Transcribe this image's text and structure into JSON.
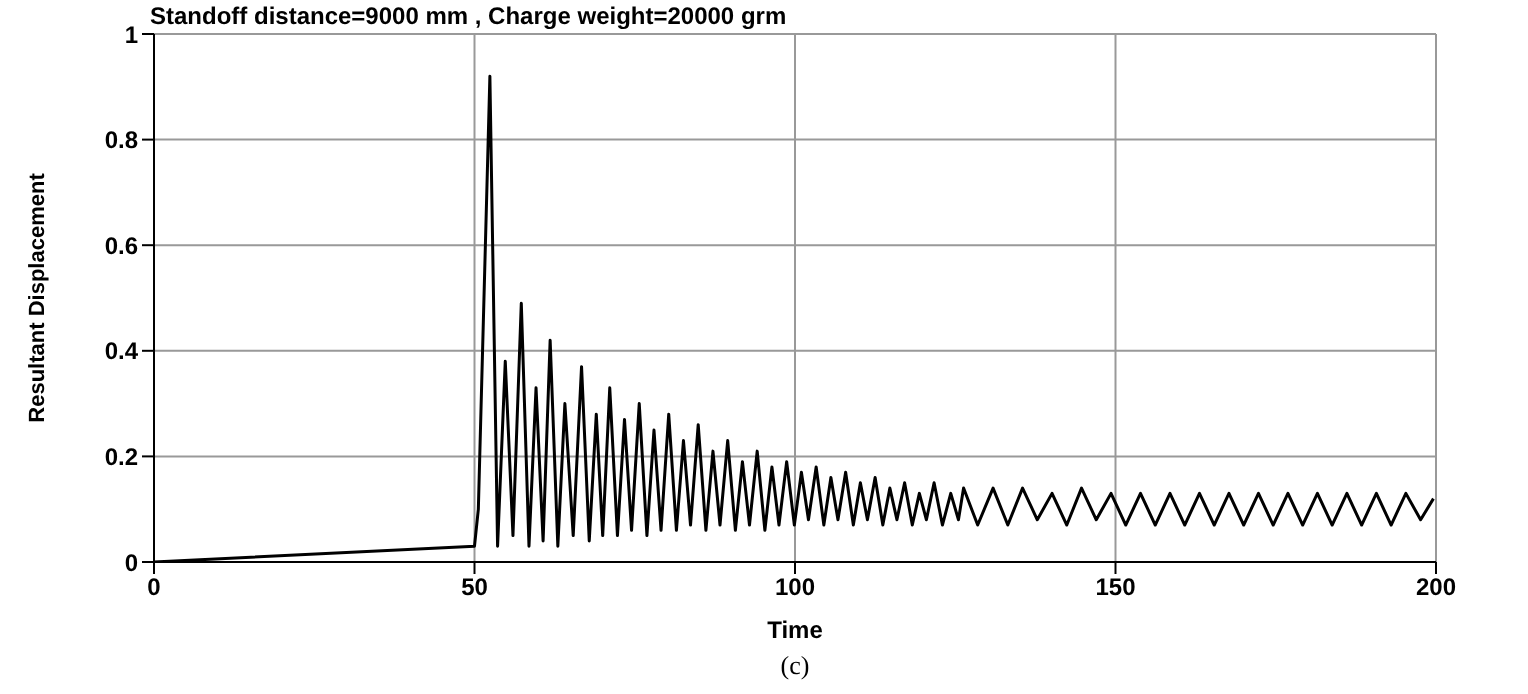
{
  "chart_data": {
    "type": "line",
    "title": "Standoff distance=9000 mm , Charge weight=20000 grm",
    "xlabel": "Time",
    "ylabel": "Resultant Displacement",
    "annotations": [
      "(c)"
    ],
    "xlim": [
      0,
      200
    ],
    "xticks": [
      0,
      50,
      100,
      150,
      200
    ],
    "ylim": [
      0,
      1
    ],
    "yticks": [
      0,
      0.2,
      0.4,
      0.6,
      0.8,
      1
    ],
    "grid": true,
    "line_style": "solid",
    "marker": "none",
    "series": [
      {
        "color": "#000000",
        "x": [
          0,
          50,
          50.6,
          52.4,
          53.6,
          54.8,
          56,
          57.3,
          58.5,
          59.6,
          60.7,
          61.8,
          63,
          64.1,
          65.4,
          66.7,
          67.9,
          69,
          70,
          71.1,
          72.3,
          73.4,
          74.5,
          75.7,
          76.9,
          78,
          79.1,
          80.3,
          81.5,
          82.6,
          83.7,
          84.9,
          86.1,
          87.2,
          88.3,
          89.5,
          90.7,
          91.8,
          92.9,
          94.1,
          95.3,
          96.4,
          97.5,
          98.7,
          99.9,
          101,
          102.1,
          103.3,
          104.5,
          105.6,
          106.7,
          107.9,
          109.1,
          110.2,
          111.3,
          112.5,
          113.7,
          114.8,
          115.9,
          117.1,
          118.3,
          119.4,
          120.5,
          121.7,
          123,
          124.3,
          125.5,
          126.3,
          128.5,
          130.9,
          133.2,
          135.5,
          137.8,
          140.1,
          142.4,
          144.7,
          147,
          149.3,
          151.6,
          153.9,
          156.2,
          158.5,
          160.8,
          163.1,
          165.4,
          167.7,
          170,
          172.3,
          174.6,
          176.9,
          179.2,
          181.5,
          183.8,
          186.1,
          188.4,
          190.7,
          193,
          195.3,
          197.6,
          199.6
        ],
        "values": [
          0,
          0.03,
          0.1,
          0.92,
          0.03,
          0.38,
          0.05,
          0.49,
          0.03,
          0.33,
          0.04,
          0.42,
          0.03,
          0.3,
          0.05,
          0.37,
          0.04,
          0.28,
          0.05,
          0.33,
          0.05,
          0.27,
          0.06,
          0.3,
          0.05,
          0.25,
          0.06,
          0.28,
          0.06,
          0.23,
          0.07,
          0.26,
          0.06,
          0.21,
          0.07,
          0.23,
          0.06,
          0.19,
          0.07,
          0.21,
          0.06,
          0.18,
          0.07,
          0.19,
          0.07,
          0.17,
          0.08,
          0.18,
          0.07,
          0.16,
          0.08,
          0.17,
          0.07,
          0.15,
          0.08,
          0.16,
          0.07,
          0.14,
          0.08,
          0.15,
          0.07,
          0.13,
          0.08,
          0.15,
          0.07,
          0.13,
          0.08,
          0.14,
          0.07,
          0.14,
          0.07,
          0.14,
          0.08,
          0.13,
          0.07,
          0.14,
          0.08,
          0.13,
          0.07,
          0.13,
          0.07,
          0.13,
          0.07,
          0.13,
          0.07,
          0.13,
          0.07,
          0.13,
          0.07,
          0.13,
          0.07,
          0.13,
          0.07,
          0.13,
          0.07,
          0.13,
          0.07,
          0.13,
          0.08,
          0.12
        ]
      }
    ]
  }
}
